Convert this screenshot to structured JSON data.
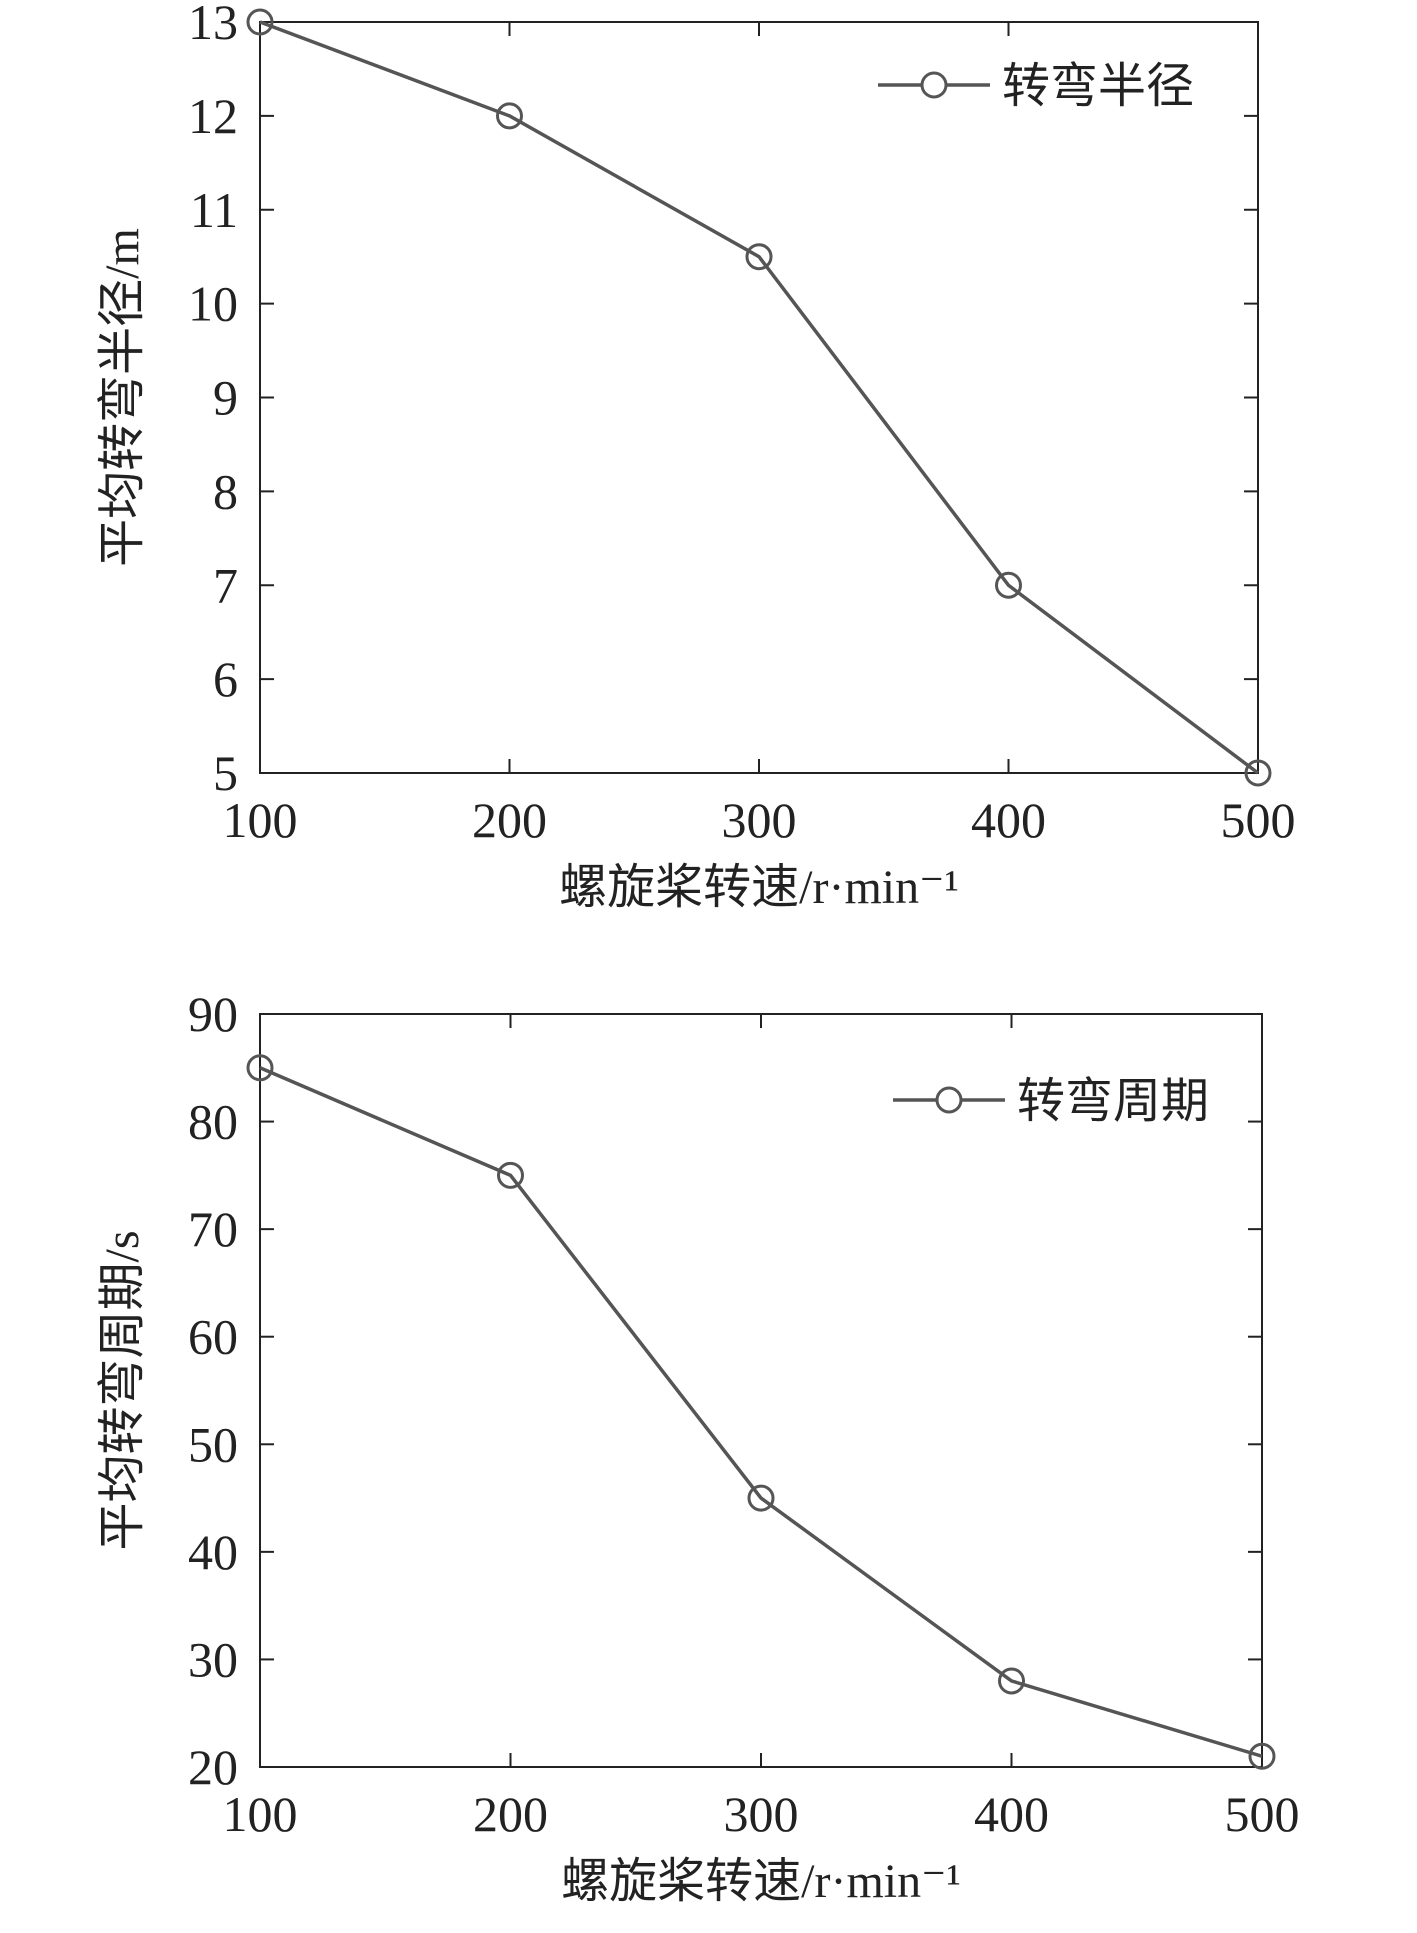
{
  "chart_data": [
    {
      "type": "line",
      "x": [
        100,
        200,
        300,
        400,
        500
      ],
      "series": [
        {
          "name": "转弯半径",
          "values": [
            13,
            12,
            10.5,
            7,
            5
          ],
          "marker": "circle",
          "color": "#555555"
        }
      ],
      "xlabel": "螺旋桨转速/r·min⁻¹",
      "ylabel": "平均转弯半径/m",
      "xlim": [
        100,
        500
      ],
      "ylim": [
        5,
        13
      ],
      "xticks": [
        100,
        200,
        300,
        400,
        500
      ],
      "yticks": [
        5,
        6,
        7,
        8,
        9,
        10,
        11,
        12,
        13
      ],
      "grid": false,
      "legend": "top-right"
    },
    {
      "type": "line",
      "x": [
        100,
        200,
        300,
        400,
        500
      ],
      "series": [
        {
          "name": "转弯周期",
          "values": [
            85,
            75,
            45,
            28,
            21
          ],
          "marker": "circle",
          "color": "#555555"
        }
      ],
      "xlabel": "螺旋桨转速/r·min⁻¹",
      "ylabel": "平均转弯周期/s",
      "xlim": [
        100,
        500
      ],
      "ylim": [
        20,
        90
      ],
      "xticks": [
        100,
        200,
        300,
        400,
        500
      ],
      "yticks": [
        20,
        30,
        40,
        50,
        60,
        70,
        80,
        90
      ],
      "grid": false,
      "legend": "top-right"
    }
  ]
}
